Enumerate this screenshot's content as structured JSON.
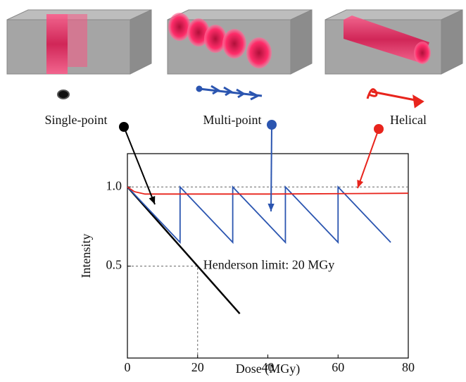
{
  "chart_data": {
    "type": "line",
    "xlabel": "Dose (MGy)",
    "ylabel": "Intensity",
    "xlim": [
      0,
      80
    ],
    "ylim": [
      -0.08,
      1.21
    ],
    "xticks": [
      0,
      20,
      40,
      60,
      80
    ],
    "yticks": [
      0.5,
      {
        "value": 1.0,
        "label": "1.0"
      }
    ],
    "reference_line": 1.0,
    "annotation": {
      "text": "Henderson limit: 20 MGy",
      "x": 20,
      "y": 0.5
    },
    "series": [
      {
        "name": "Single-point",
        "color": "#000000",
        "x": [
          0,
          32
        ],
        "values": [
          1.0,
          0.2
        ]
      },
      {
        "name": "Multi-point",
        "color": "#2b55b0",
        "x": [
          0,
          15,
          15,
          30,
          30,
          45,
          45,
          60,
          60,
          75
        ],
        "values": [
          1.0,
          0.65,
          1.0,
          0.65,
          1.0,
          0.65,
          1.0,
          0.65,
          1.0,
          0.65
        ]
      },
      {
        "name": "Helical",
        "color": "#e8241c",
        "x": [
          0,
          2,
          5,
          10,
          40,
          80
        ],
        "values": [
          1.0,
          0.97,
          0.955,
          0.955,
          0.955,
          0.96
        ]
      }
    ]
  }
}
